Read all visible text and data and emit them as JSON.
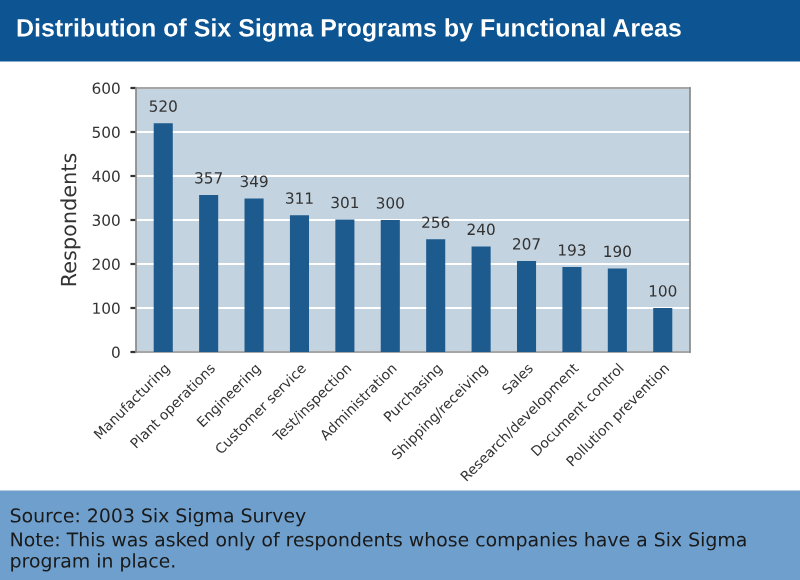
{
  "chart_data": {
    "type": "bar",
    "title": "Distribution of Six Sigma Programs by Functional Areas",
    "ylabel": "Respondents",
    "categories": [
      "Manufacturing",
      "Plant operations",
      "Engineering",
      "Customer service",
      "Test/inspection",
      "Administration",
      "Purchasing",
      "Shipping/receiving",
      "Sales",
      "Research/development",
      "Document control",
      "Pollution prevention"
    ],
    "values": [
      520,
      357,
      349,
      311,
      301,
      300,
      256,
      240,
      207,
      193,
      190,
      100
    ],
    "color": "#1d5a8e",
    "ylim": [
      0,
      600
    ],
    "yticks": [
      0,
      100,
      200,
      300,
      400,
      500,
      600
    ],
    "grid": "y",
    "data_labels": true,
    "legend": false,
    "annotations": [
      "Source: 2003 Six Sigma Survey",
      "Note: This was asked only of respondents whose companies have a Six Sigma program in place."
    ]
  }
}
